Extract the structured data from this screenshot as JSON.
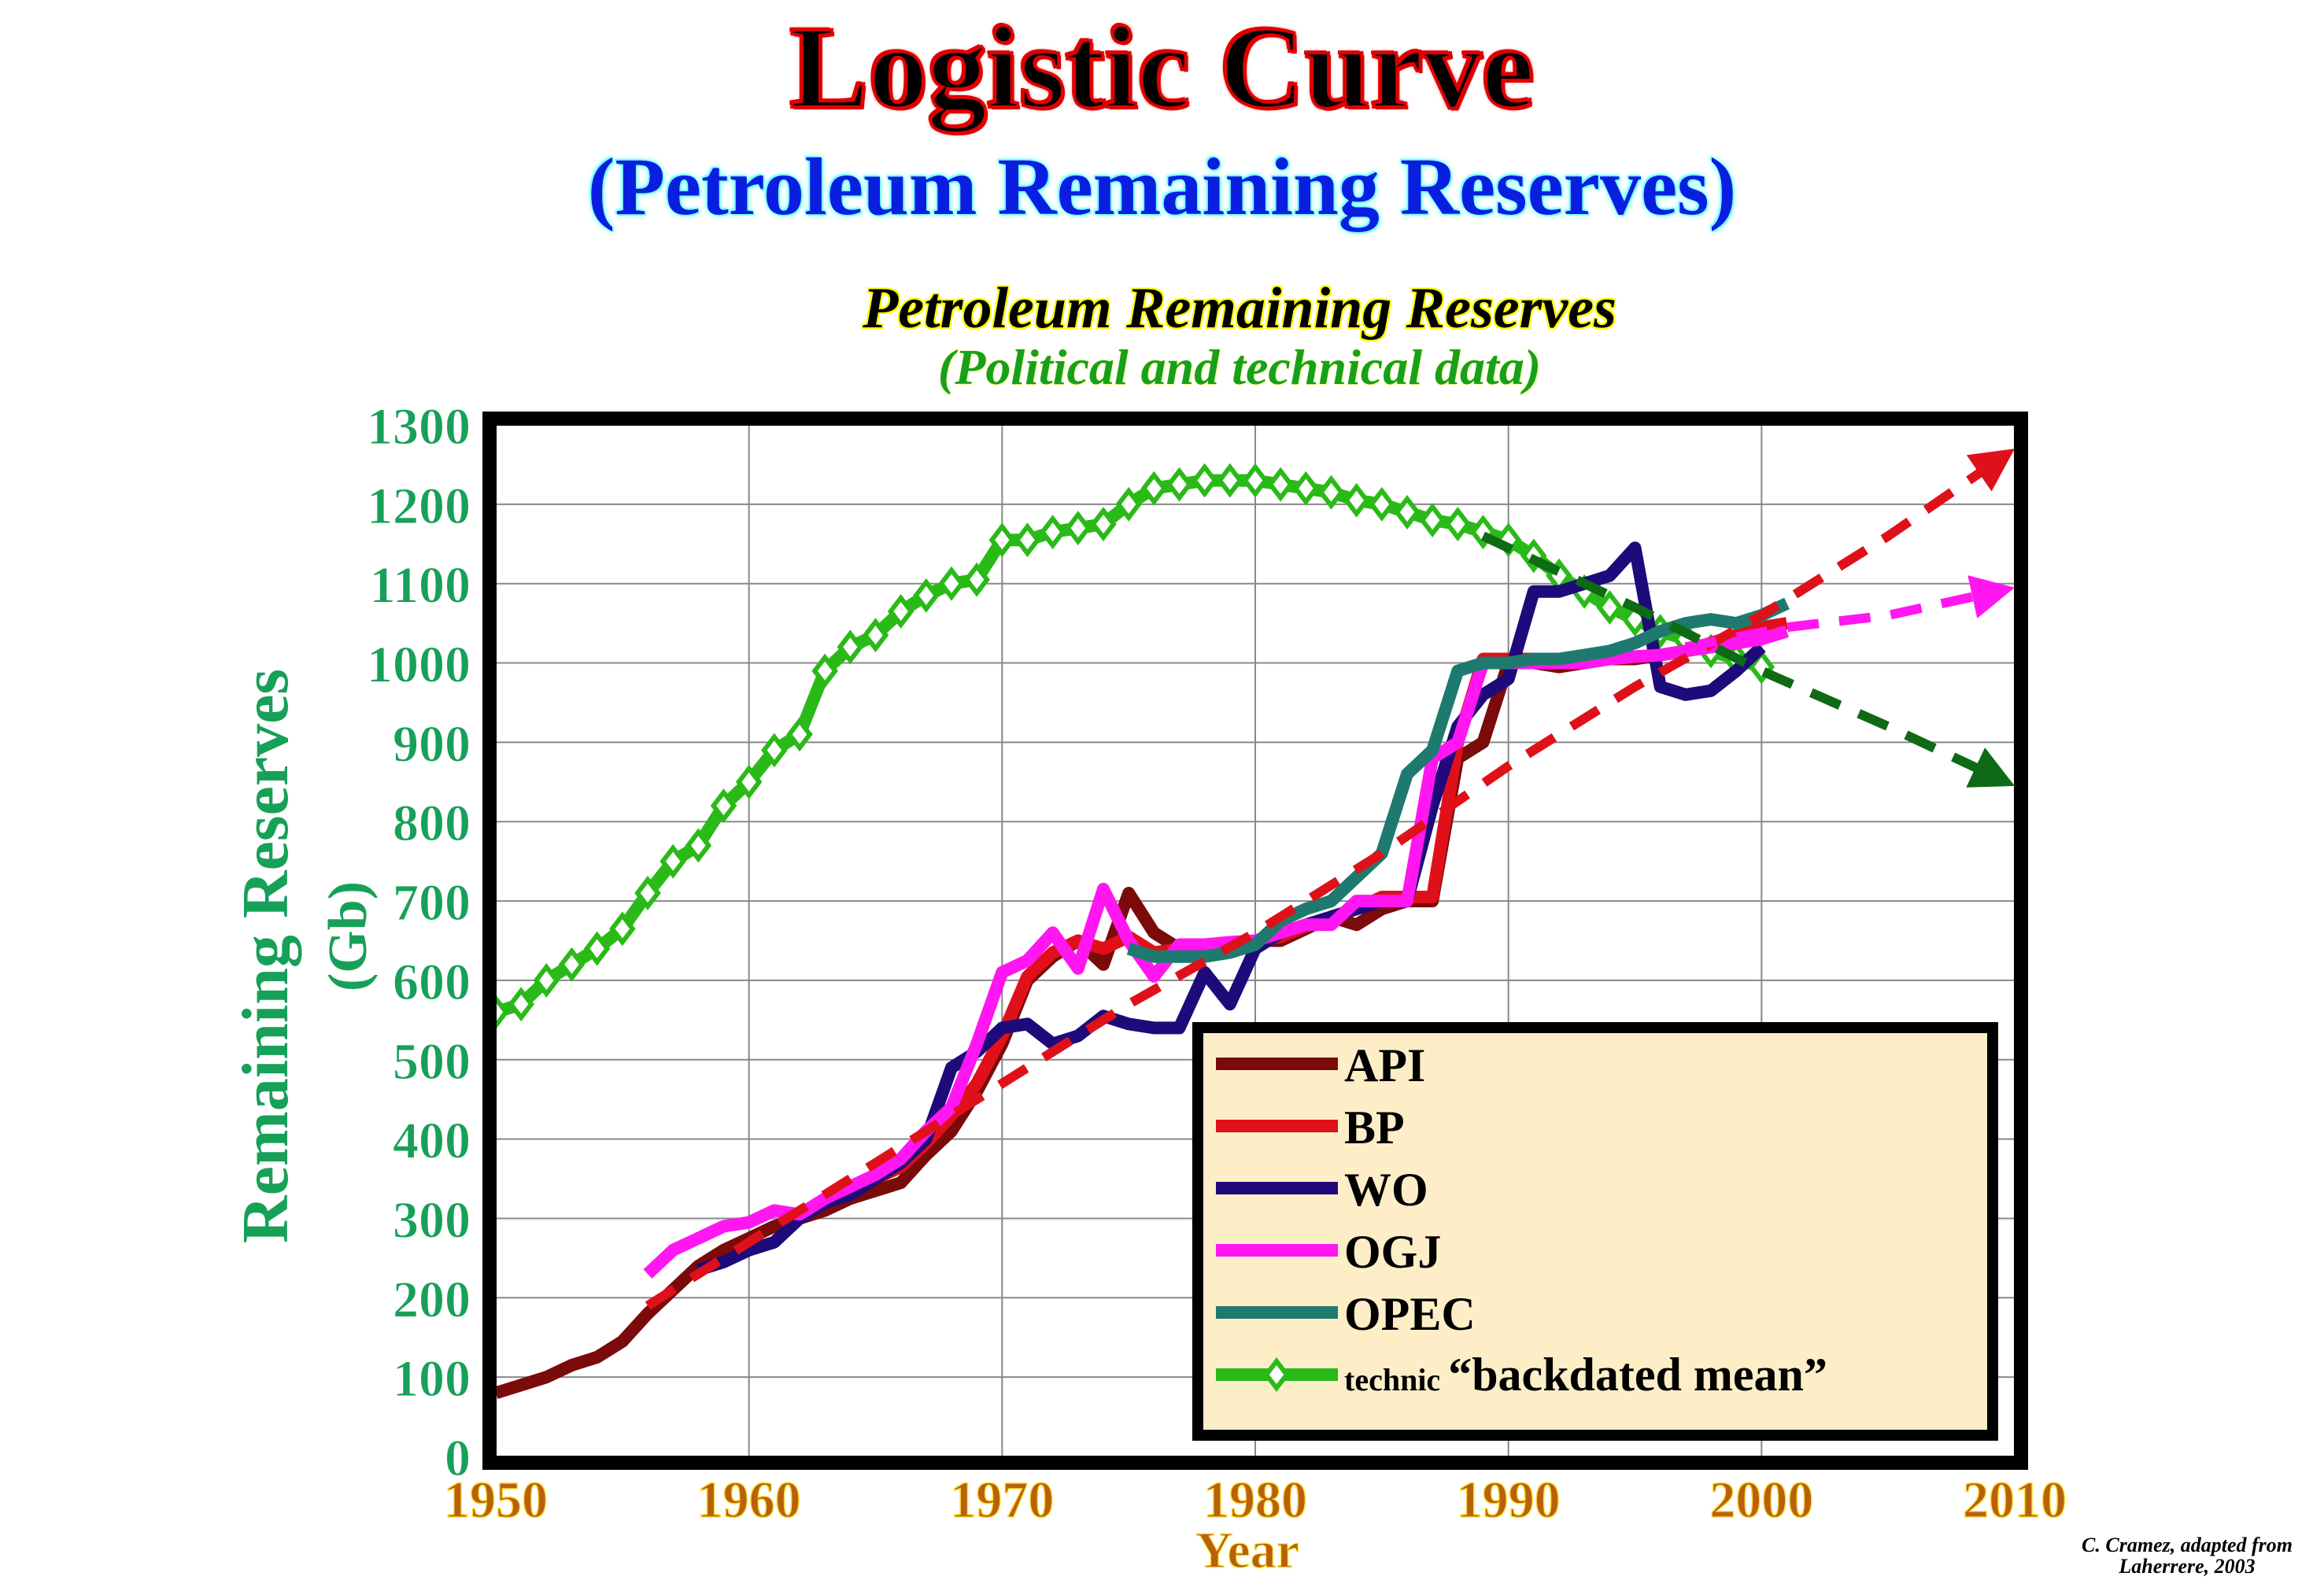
{
  "header": {
    "title": "Logistic Curve",
    "subtitle": "(Petroleum Remaining Reserves)"
  },
  "credit": {
    "line1": "C. Cramez, adapted from",
    "line2": "Laherrere, 2003"
  },
  "colors": {
    "API": "#7b0a0a",
    "BP": "#e0101a",
    "WO": "#1e0a7a",
    "OGJ": "#ff16f0",
    "OPEC": "#1e7a6e",
    "technic": "#2aba18",
    "legend_bg": "#fdeec8"
  },
  "chart_data": {
    "type": "line",
    "title": "Petroleum Remaining Reserves",
    "subtitle": "(Political and technical data)",
    "xlabel": "Year",
    "ylabel": "Remaining Reserves",
    "ylabel_unit": "(Gb)",
    "xlim": [
      1950,
      2010
    ],
    "ylim": [
      0,
      1300
    ],
    "xticks": [
      "1950",
      "1960",
      "1970",
      "1980",
      "1990",
      "2000",
      "2010"
    ],
    "yticks": [
      "0",
      "100",
      "200",
      "300",
      "400",
      "500",
      "600",
      "700",
      "800",
      "900",
      "1000",
      "1100",
      "1200",
      "1300"
    ],
    "grid": true,
    "legend_position": "bottom-right",
    "series": [
      {
        "name": "API",
        "key": "API",
        "x": [
          1950,
          1951,
          1952,
          1953,
          1954,
          1955,
          1956,
          1957,
          1958,
          1959,
          1960,
          1961,
          1962,
          1963,
          1964,
          1965,
          1966,
          1967,
          1968,
          1969,
          1970,
          1971,
          1972,
          1973,
          1974,
          1975,
          1976,
          1977,
          1978,
          1979,
          1980,
          1981,
          1982,
          1983,
          1984,
          1985,
          1986,
          1987,
          1988,
          1989,
          1990,
          1991,
          1992,
          1993,
          1994,
          1995,
          1996,
          1997,
          1998,
          1999,
          2000
        ],
        "values": [
          80,
          90,
          100,
          115,
          125,
          145,
          180,
          210,
          240,
          260,
          275,
          290,
          300,
          310,
          325,
          335,
          345,
          380,
          410,
          460,
          520,
          600,
          630,
          650,
          620,
          710,
          660,
          640,
          640,
          645,
          650,
          650,
          665,
          680,
          670,
          690,
          700,
          700,
          880,
          900,
          1000,
          1000,
          995,
          1000,
          1005,
          1005,
          1010,
          1015,
          1025,
          1030,
          1035
        ]
      },
      {
        "name": "BP",
        "key": "BP",
        "x": [
          1965,
          1966,
          1967,
          1968,
          1969,
          1970,
          1971,
          1972,
          1973,
          1974,
          1975,
          1976,
          1977,
          1978,
          1979,
          1980,
          1981,
          1982,
          1983,
          1984,
          1985,
          1986,
          1987,
          1988,
          1989,
          1990,
          1991,
          1992,
          1993,
          1994,
          1995,
          1996,
          1997,
          1998,
          1999,
          2000,
          2001
        ],
        "values": [
          350,
          365,
          395,
          430,
          470,
          530,
          605,
          635,
          650,
          640,
          655,
          635,
          640,
          642,
          645,
          650,
          655,
          668,
          680,
          690,
          705,
          705,
          705,
          900,
          1005,
          1005,
          1005,
          1000,
          1002,
          1005,
          1008,
          1010,
          1015,
          1025,
          1035,
          1045,
          1050
        ]
      },
      {
        "name": "WO",
        "key": "WO",
        "x": [
          1958,
          1959,
          1960,
          1961,
          1962,
          1963,
          1964,
          1965,
          1966,
          1967,
          1968,
          1969,
          1970,
          1971,
          1972,
          1973,
          1974,
          1975,
          1976,
          1977,
          1978,
          1979,
          1980,
          1981,
          1982,
          1983,
          1984,
          1985,
          1986,
          1987,
          1988,
          1989,
          1990,
          1991,
          1992,
          1993,
          1994,
          1995,
          1996,
          1997,
          1998,
          1999,
          2000
        ],
        "values": [
          235,
          245,
          260,
          270,
          300,
          320,
          330,
          350,
          370,
          400,
          490,
          510,
          540,
          545,
          520,
          530,
          555,
          545,
          540,
          540,
          610,
          570,
          640,
          660,
          670,
          680,
          690,
          700,
          700,
          820,
          920,
          960,
          980,
          1090,
          1090,
          1100,
          1110,
          1145,
          970,
          960,
          965,
          990,
          1020
        ]
      },
      {
        "name": "OGJ",
        "key": "OGJ",
        "x": [
          1956,
          1957,
          1958,
          1959,
          1960,
          1961,
          1962,
          1963,
          1964,
          1965,
          1966,
          1967,
          1968,
          1969,
          1970,
          1971,
          1972,
          1973,
          1974,
          1975,
          1976,
          1977,
          1978,
          1979,
          1980,
          1981,
          1982,
          1983,
          1984,
          1985,
          1986,
          1987,
          1988,
          1989,
          1990,
          1991,
          1992,
          1993,
          1994,
          1995,
          1996,
          1997,
          1998,
          1999,
          2000,
          2001
        ],
        "values": [
          230,
          260,
          275,
          290,
          295,
          310,
          305,
          325,
          340,
          355,
          375,
          410,
          440,
          520,
          610,
          625,
          660,
          615,
          715,
          650,
          605,
          645,
          645,
          648,
          650,
          660,
          670,
          670,
          700,
          700,
          700,
          880,
          900,
          1000,
          1000,
          1000,
          1000,
          1000,
          1005,
          1008,
          1010,
          1015,
          1020,
          1025,
          1030,
          1040
        ]
      },
      {
        "name": "OPEC",
        "key": "OPEC",
        "x": [
          1975,
          1976,
          1977,
          1978,
          1979,
          1980,
          1981,
          1982,
          1983,
          1984,
          1985,
          1986,
          1987,
          1988,
          1989,
          1990,
          1991,
          1992,
          1993,
          1994,
          1995,
          1996,
          1997,
          1998,
          1999,
          2000,
          2001
        ],
        "values": [
          640,
          630,
          630,
          630,
          635,
          645,
          675,
          690,
          700,
          730,
          760,
          860,
          890,
          990,
          1000,
          1000,
          1005,
          1005,
          1010,
          1015,
          1025,
          1040,
          1050,
          1055,
          1050,
          1060,
          1075
        ]
      },
      {
        "name": "technic “backdated mean”",
        "key": "technic",
        "label_small": "technic",
        "label_big": "“backdated mean”",
        "x": [
          1950,
          1951,
          1952,
          1953,
          1954,
          1955,
          1956,
          1957,
          1958,
          1959,
          1960,
          1961,
          1962,
          1963,
          1964,
          1965,
          1966,
          1967,
          1968,
          1969,
          1970,
          1971,
          1972,
          1973,
          1974,
          1975,
          1976,
          1977,
          1978,
          1979,
          1980,
          1981,
          1982,
          1983,
          1984,
          1985,
          1986,
          1987,
          1988,
          1989,
          1990,
          1991,
          1992,
          1993,
          1994,
          1995,
          1996,
          1997,
          1998,
          1999,
          2000
        ],
        "values": [
          560,
          570,
          600,
          620,
          640,
          665,
          710,
          750,
          770,
          820,
          850,
          890,
          910,
          990,
          1020,
          1035,
          1065,
          1085,
          1100,
          1105,
          1155,
          1155,
          1165,
          1170,
          1175,
          1200,
          1220,
          1225,
          1230,
          1230,
          1230,
          1225,
          1220,
          1215,
          1205,
          1200,
          1190,
          1180,
          1175,
          1165,
          1155,
          1135,
          1110,
          1090,
          1070,
          1055,
          1040,
          1030,
          1015,
          1005,
          995
        ]
      }
    ],
    "trends": [
      {
        "name": "logistic-trend-red",
        "color": "#e0101a",
        "x": [
          1956,
          1960,
          1965,
          1970,
          1975,
          1980,
          1985,
          1990,
          1995,
          2000,
          2005,
          2010
        ],
        "values": [
          190,
          270,
          370,
          470,
          570,
          660,
          760,
          870,
          970,
          1060,
          1160,
          1270
        ]
      },
      {
        "name": "trend-magenta",
        "color": "#ff16f0",
        "x": [
          1997,
          2001,
          2005,
          2010
        ],
        "values": [
          1020,
          1045,
          1060,
          1095
        ]
      },
      {
        "name": "trend-dark-green",
        "color": "#0e6a14",
        "x": [
          1989,
          1995,
          2000,
          2005,
          2010
        ],
        "values": [
          1160,
          1070,
          990,
          920,
          845
        ]
      }
    ]
  }
}
